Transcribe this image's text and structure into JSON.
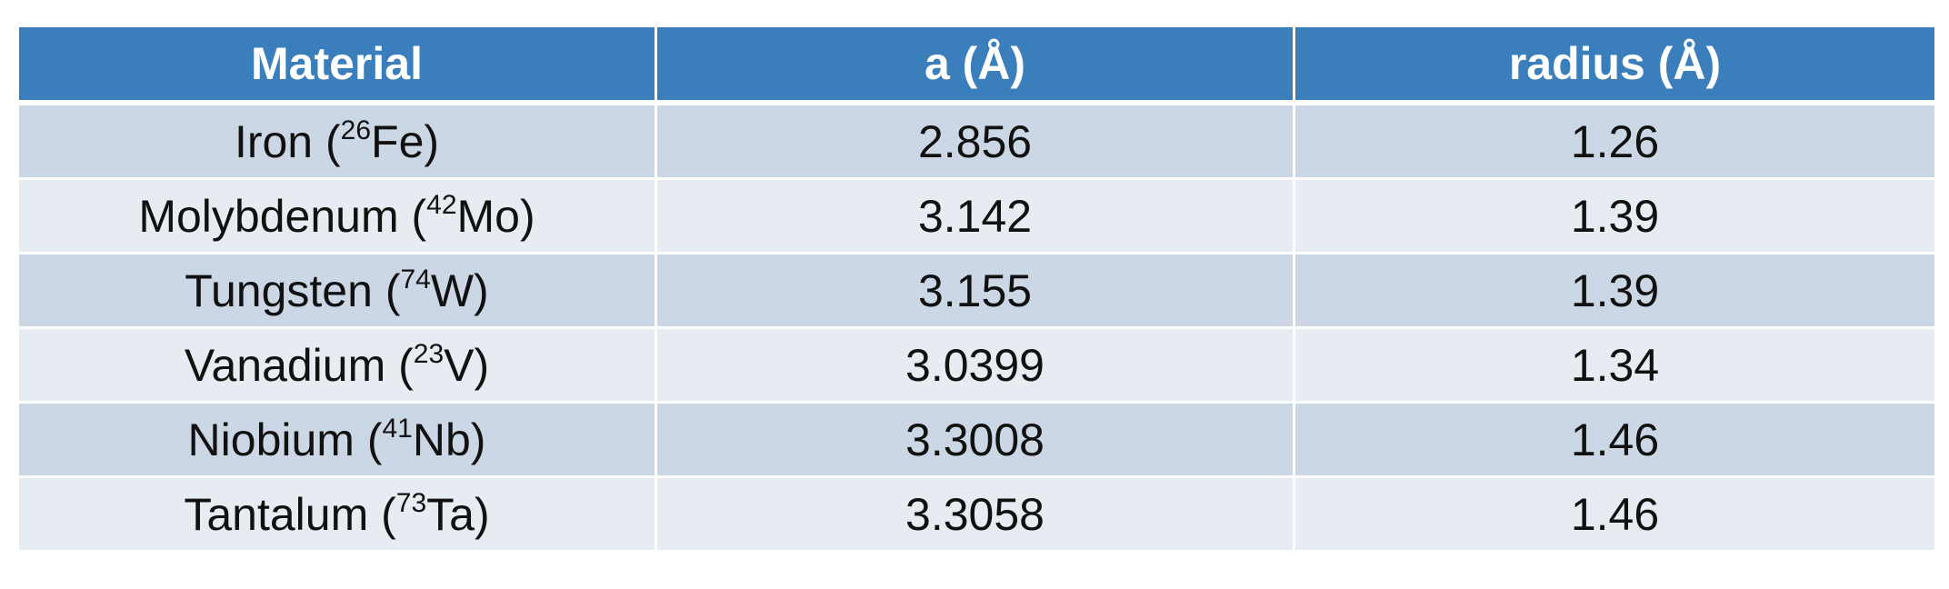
{
  "table": {
    "headers": [
      "Material",
      "a (Å)",
      "radius (Å)"
    ],
    "rows": [
      {
        "name": "Iron",
        "z": "26",
        "symbol": "Fe",
        "a": "2.856",
        "radius": "1.26"
      },
      {
        "name": "Molybdenum",
        "z": "42",
        "symbol": "Mo",
        "a": "3.142",
        "radius": "1.39"
      },
      {
        "name": "Tungsten",
        "z": "74",
        "symbol": "W",
        "a": "3.155",
        "radius": "1.39"
      },
      {
        "name": "Vanadium",
        "z": "23",
        "symbol": "V",
        "a": "3.0399",
        "radius": "1.34"
      },
      {
        "name": "Niobium",
        "z": "41",
        "symbol": "Nb",
        "a": "3.3008",
        "radius": "1.46"
      },
      {
        "name": "Tantalum",
        "z": "73",
        "symbol": "Ta",
        "a": "3.3058",
        "radius": "1.46"
      }
    ]
  },
  "colors": {
    "header_bg": "#3a7fbb",
    "row_dark": "#cbd7e5",
    "row_light": "#e7ecf3",
    "grid": "#ffffff"
  }
}
